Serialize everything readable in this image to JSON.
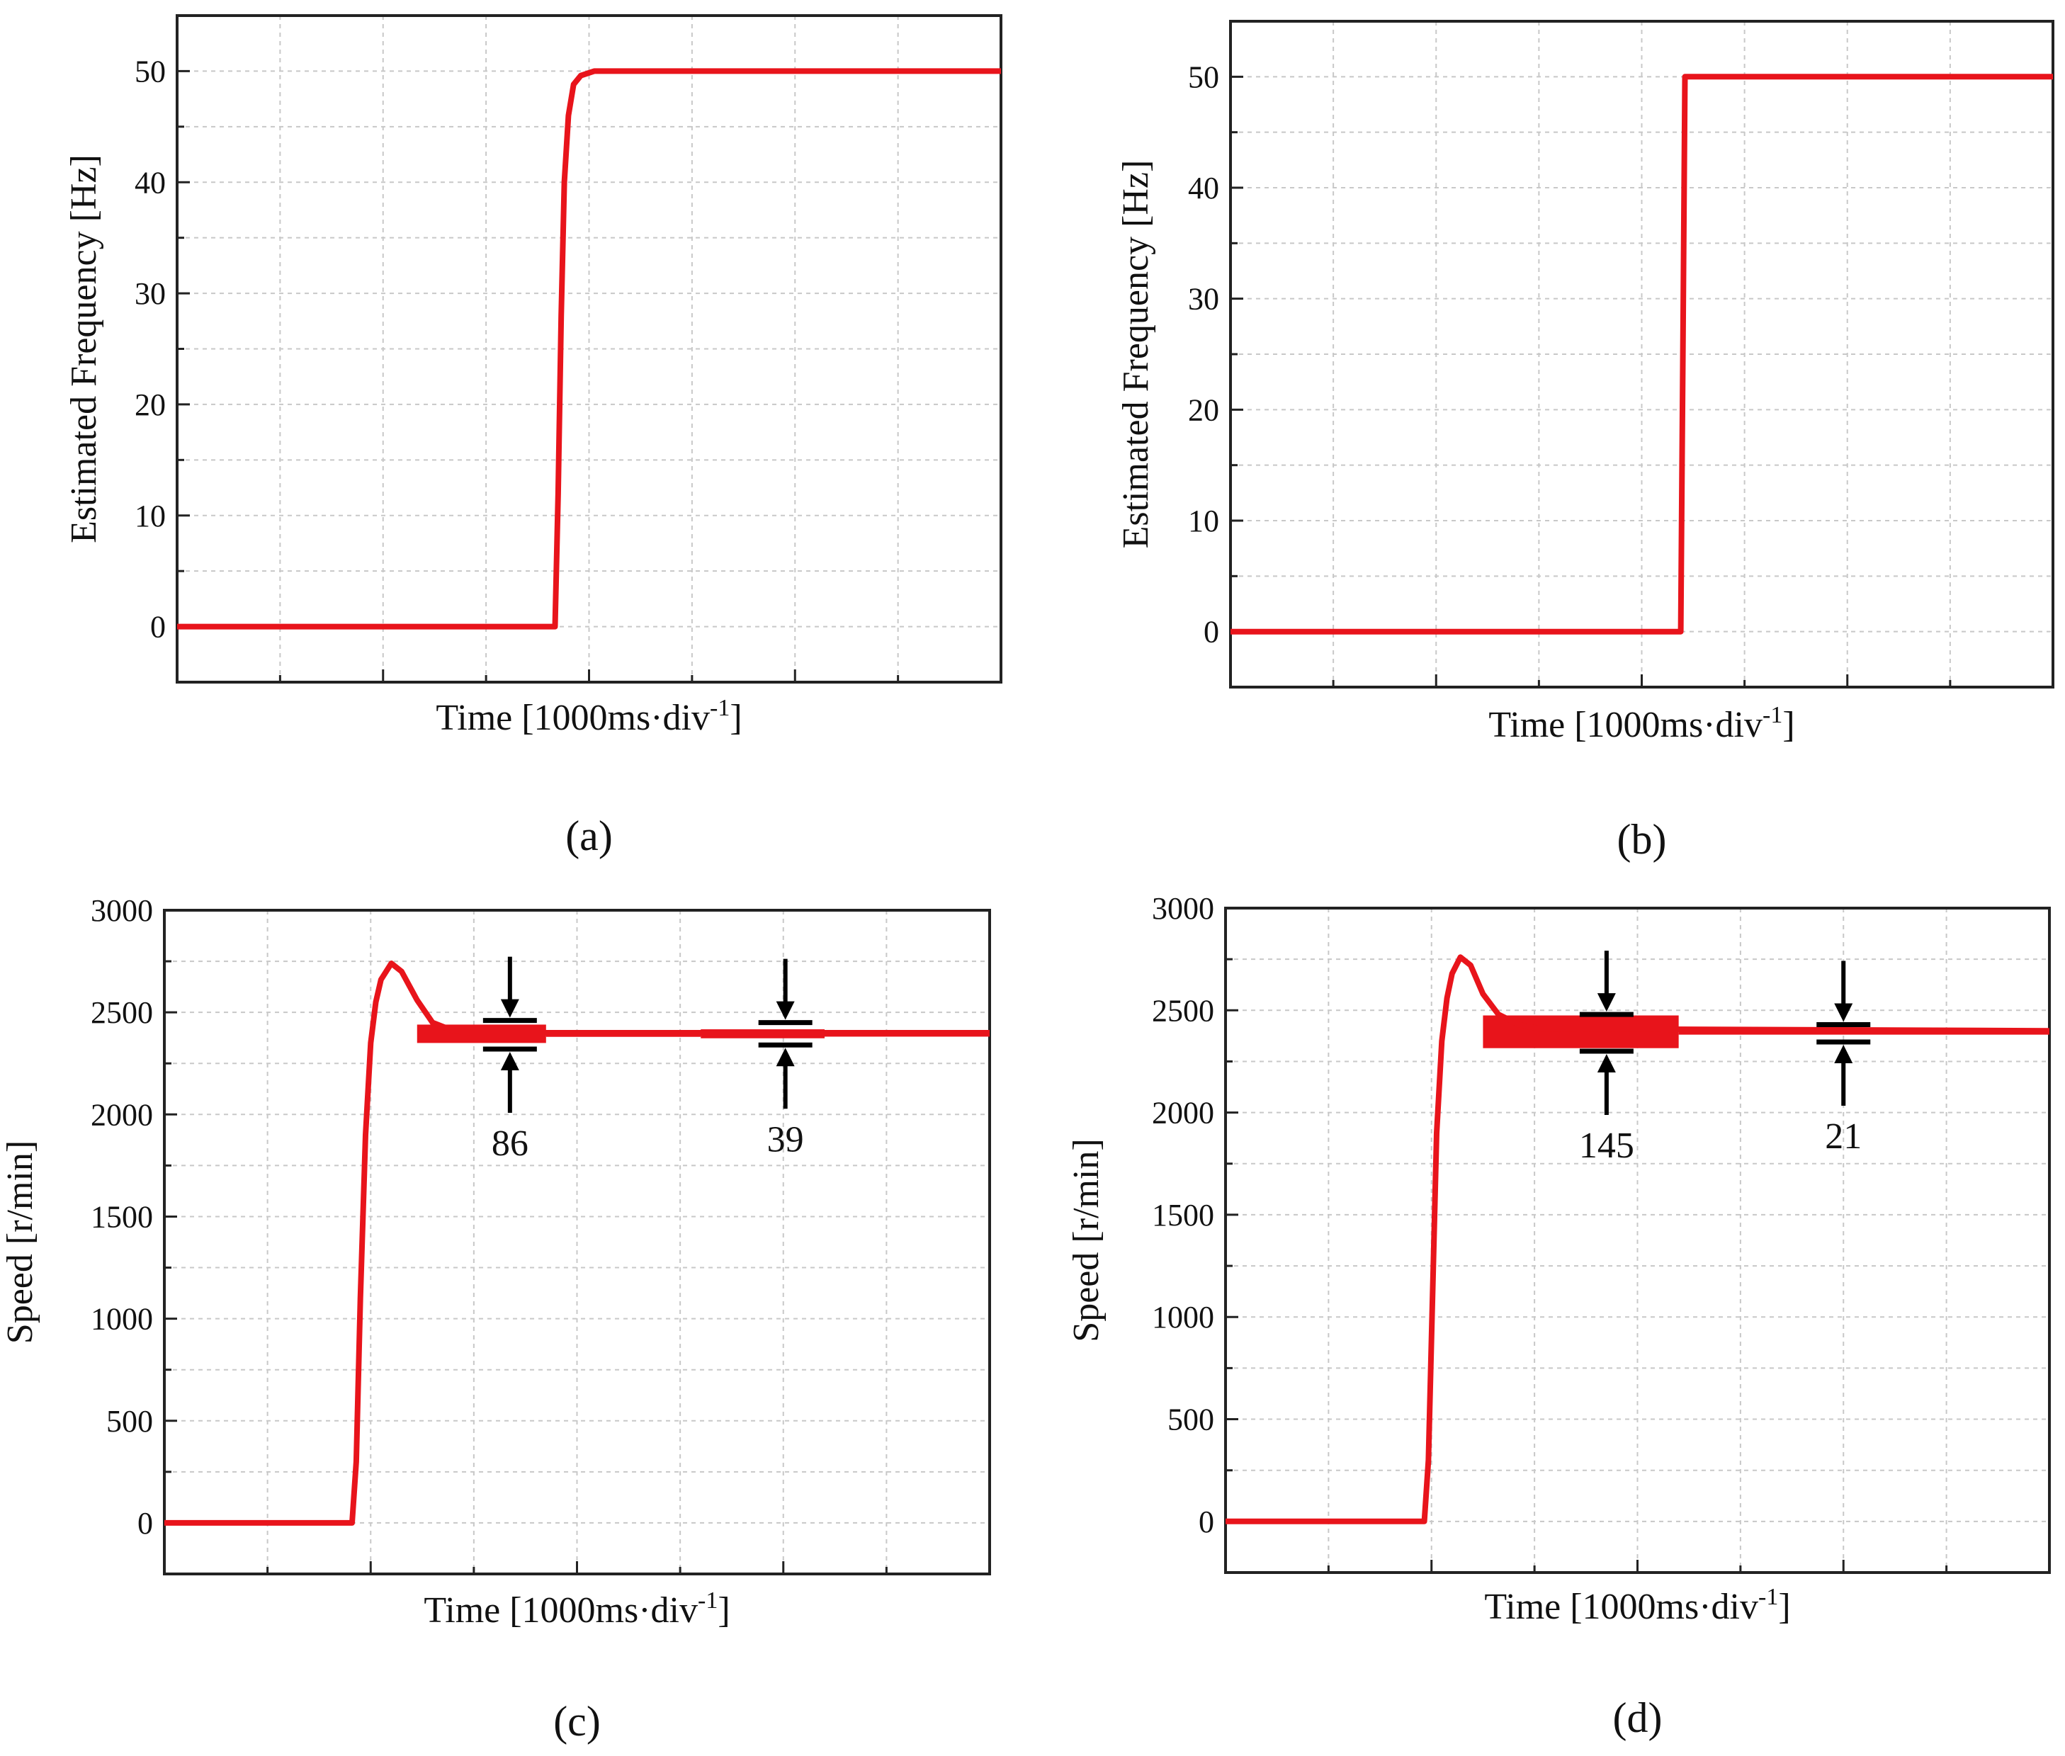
{
  "chart_data": [
    {
      "panel_label": "(a)",
      "type": "line",
      "ylabel": "Estimated Frequency [Hz]",
      "xlabel_main": "Time [1000ms·div",
      "xlabel_sup": "-1",
      "xlabel_close": "]",
      "x_unit": "div (1000 ms each)",
      "xlim": [
        0,
        8
      ],
      "ylim": [
        -5,
        55
      ],
      "yticks": [
        0,
        10,
        20,
        30,
        40,
        50
      ],
      "ytick_labels": [
        "0",
        "10",
        "20",
        "30",
        "40",
        "50"
      ],
      "series": [
        {
          "name": "estimated frequency",
          "color": "#e8141b",
          "x": [
            0,
            3.67,
            3.7,
            3.73,
            3.76,
            3.8,
            3.85,
            3.92,
            4.05,
            8
          ],
          "y": [
            0,
            0,
            12,
            28,
            40,
            46,
            48.8,
            49.6,
            50,
            50
          ]
        }
      ],
      "annotations": []
    },
    {
      "panel_label": "(b)",
      "type": "line",
      "ylabel": "Estimated Frequency [Hz]",
      "xlabel_main": "Time [1000ms·div",
      "xlabel_sup": "-1",
      "xlabel_close": "]",
      "x_unit": "div (1000 ms each)",
      "xlim": [
        0,
        8
      ],
      "ylim": [
        -5,
        55
      ],
      "yticks": [
        0,
        10,
        20,
        30,
        40,
        50
      ],
      "ytick_labels": [
        "0",
        "10",
        "20",
        "30",
        "40",
        "50"
      ],
      "series": [
        {
          "name": "estimated frequency",
          "color": "#e8141b",
          "x": [
            0,
            4.38,
            4.4,
            4.42,
            8
          ],
          "y": [
            0,
            0,
            25,
            50,
            50
          ]
        }
      ],
      "annotations": []
    },
    {
      "panel_label": "(c)",
      "type": "line",
      "ylabel": "Speed [r/min]",
      "xlabel_main": "Time [1000ms·div",
      "xlabel_sup": "-1",
      "xlabel_close": "]",
      "x_unit": "div (1000 ms each)",
      "xlim": [
        0,
        8
      ],
      "ylim": [
        -250,
        3000
      ],
      "yticks": [
        0,
        500,
        1000,
        1500,
        2000,
        2500,
        3000
      ],
      "ytick_labels": [
        "0",
        "500",
        "1000",
        "1500",
        "2000",
        "2500",
        "3000"
      ],
      "series": [
        {
          "name": "speed",
          "color": "#e8141b",
          "x": [
            0,
            1.82,
            1.86,
            1.9,
            1.95,
            2.0,
            2.05,
            2.1,
            2.2,
            2.3,
            2.45,
            2.6,
            2.8,
            3.0,
            8
          ],
          "y": [
            0,
            0,
            300,
            1100,
            1900,
            2350,
            2550,
            2660,
            2740,
            2700,
            2560,
            2450,
            2410,
            2400,
            2400
          ],
          "band": [
            {
              "x_start": 2.45,
              "x_end": 3.7,
              "center": 2395,
              "half_width": 45
            },
            {
              "x_start": 3.7,
              "x_end": 5.2,
              "center": 2395,
              "half_width": 15
            },
            {
              "x_start": 5.2,
              "x_end": 6.4,
              "center": 2395,
              "half_width": 22
            },
            {
              "x_start": 6.4,
              "x_end": 8.0,
              "center": 2395,
              "half_width": 14
            }
          ]
        }
      ],
      "annotations": [
        {
          "label": "86",
          "x": 3.35,
          "upper": 2460,
          "lower": 2320
        },
        {
          "label": "39",
          "x": 6.02,
          "upper": 2450,
          "lower": 2340
        }
      ]
    },
    {
      "panel_label": "(d)",
      "type": "line",
      "ylabel": "Speed [r/min]",
      "xlabel_main": "Time [1000ms·div",
      "xlabel_sup": "-1",
      "xlabel_close": "]",
      "x_unit": "div (1000 ms each)",
      "xlim": [
        0,
        8
      ],
      "ylim": [
        -250,
        3000
      ],
      "yticks": [
        0,
        500,
        1000,
        1500,
        2000,
        2500,
        3000
      ],
      "ytick_labels": [
        "0",
        "500",
        "1000",
        "1500",
        "2000",
        "2500",
        "3000"
      ],
      "series": [
        {
          "name": "speed",
          "color": "#e8141b",
          "x": [
            0,
            1.93,
            1.97,
            2.01,
            2.05,
            2.1,
            2.15,
            2.2,
            2.28,
            2.38,
            2.5,
            2.65,
            2.85,
            3.05,
            8
          ],
          "y": [
            0,
            0,
            300,
            1100,
            1900,
            2350,
            2560,
            2680,
            2760,
            2720,
            2580,
            2480,
            2430,
            2410,
            2400
          ],
          "band": [
            {
              "x_start": 2.5,
              "x_end": 4.4,
              "center": 2395,
              "half_width": 80
            },
            {
              "x_start": 4.4,
              "x_end": 8.0,
              "center": 2395,
              "half_width": 14
            }
          ]
        }
      ],
      "annotations": [
        {
          "label": "145",
          "x": 3.7,
          "upper": 2480,
          "lower": 2300
        },
        {
          "label": "21",
          "x": 6.0,
          "upper": 2430,
          "lower": 2345
        }
      ]
    }
  ]
}
